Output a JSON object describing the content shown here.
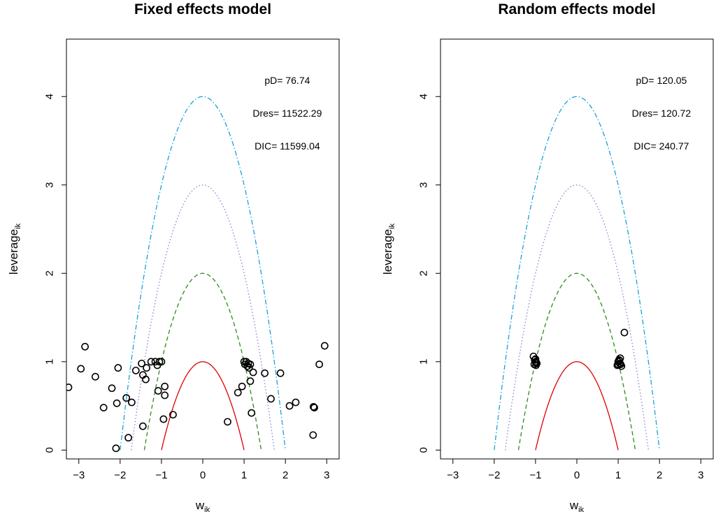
{
  "chart_data": [
    {
      "type": "scatter",
      "title": "Fixed effects model",
      "xlabel": "w",
      "xlabel_sub": "ik",
      "ylabel": "leverage",
      "ylabel_sub": "ik",
      "xlim": [
        -3.3,
        3.3
      ],
      "ylim": [
        -0.1,
        4.65
      ],
      "xticks": [
        -3,
        -2,
        -1,
        0,
        1,
        2,
        3
      ],
      "yticks": [
        0,
        1,
        2,
        3,
        4
      ],
      "annotations": [
        "pD= 76.74",
        "Dres= 11522.29",
        "DIC= 11599.04"
      ],
      "curves": [
        {
          "name": "c=1",
          "c": 1,
          "color": "#dd0000",
          "style": "solid"
        },
        {
          "name": "c=2",
          "c": 2,
          "color": "#2e8b1e",
          "style": "dashed"
        },
        {
          "name": "c=3",
          "c": 3,
          "color": "#8a7fd0",
          "style": "dotted"
        },
        {
          "name": "c=4",
          "c": 4,
          "color": "#1aa0d8",
          "style": "dotdash"
        }
      ],
      "points": [
        [
          -3.25,
          0.71
        ],
        [
          -2.85,
          1.17
        ],
        [
          -2.95,
          0.92
        ],
        [
          -2.6,
          0.83
        ],
        [
          -2.4,
          0.48
        ],
        [
          -2.2,
          0.7
        ],
        [
          -2.05,
          0.93
        ],
        [
          -2.08,
          0.53
        ],
        [
          -1.85,
          0.59
        ],
        [
          -1.72,
          0.54
        ],
        [
          -1.62,
          0.9
        ],
        [
          -1.48,
          0.98
        ],
        [
          -1.45,
          0.85
        ],
        [
          -1.38,
          0.8
        ],
        [
          -1.36,
          0.93
        ],
        [
          -1.25,
          1.0
        ],
        [
          -1.15,
          1.0
        ],
        [
          -1.1,
          0.96
        ],
        [
          -1.05,
          1.0
        ],
        [
          -1.0,
          1.0
        ],
        [
          -1.08,
          0.67
        ],
        [
          -0.92,
          0.72
        ],
        [
          -0.92,
          0.62
        ],
        [
          -0.95,
          0.35
        ],
        [
          -0.72,
          0.4
        ],
        [
          -1.45,
          0.27
        ],
        [
          -1.8,
          0.14
        ],
        [
          -2.1,
          0.02
        ],
        [
          0.6,
          0.32
        ],
        [
          0.85,
          0.65
        ],
        [
          0.95,
          0.72
        ],
        [
          1.0,
          1.0
        ],
        [
          1.02,
          0.97
        ],
        [
          1.05,
          1.0
        ],
        [
          1.08,
          0.95
        ],
        [
          1.1,
          0.98
        ],
        [
          1.12,
          0.93
        ],
        [
          1.15,
          0.97
        ],
        [
          1.15,
          0.78
        ],
        [
          1.18,
          0.42
        ],
        [
          1.22,
          0.88
        ],
        [
          1.5,
          0.87
        ],
        [
          1.65,
          0.58
        ],
        [
          1.88,
          0.87
        ],
        [
          2.1,
          0.5
        ],
        [
          2.25,
          0.54
        ],
        [
          2.68,
          0.49
        ],
        [
          2.7,
          0.48
        ],
        [
          2.67,
          0.17
        ],
        [
          2.82,
          0.97
        ],
        [
          2.95,
          1.18
        ]
      ]
    },
    {
      "type": "scatter",
      "title": "Random effects model",
      "xlabel": "w",
      "xlabel_sub": "ik",
      "ylabel": "leverage",
      "ylabel_sub": "ik",
      "xlim": [
        -3.3,
        3.3
      ],
      "ylim": [
        -0.1,
        4.65
      ],
      "xticks": [
        -3,
        -2,
        -1,
        0,
        1,
        2,
        3
      ],
      "yticks": [
        0,
        1,
        2,
        3,
        4
      ],
      "annotations": [
        "pD= 120.05",
        "Dres= 120.72",
        "DIC= 240.77"
      ],
      "curves": [
        {
          "name": "c=1",
          "c": 1,
          "color": "#dd0000",
          "style": "solid"
        },
        {
          "name": "c=2",
          "c": 2,
          "color": "#2e8b1e",
          "style": "dashed"
        },
        {
          "name": "c=3",
          "c": 3,
          "color": "#8a7fd0",
          "style": "dotted"
        },
        {
          "name": "c=4",
          "c": 4,
          "color": "#1aa0d8",
          "style": "dotdash"
        }
      ],
      "points": [
        [
          -1.05,
          1.06
        ],
        [
          -1.02,
          1.02
        ],
        [
          -1.0,
          1.0
        ],
        [
          -0.98,
          0.99
        ],
        [
          -1.03,
          0.97
        ],
        [
          -0.97,
          0.98
        ],
        [
          -1.0,
          1.03
        ],
        [
          -0.99,
          0.96
        ],
        [
          0.98,
          0.96
        ],
        [
          1.0,
          1.0
        ],
        [
          1.02,
          1.02
        ],
        [
          1.04,
          0.98
        ],
        [
          1.05,
          1.04
        ],
        [
          1.06,
          0.97
        ],
        [
          1.08,
          0.95
        ],
        [
          1.03,
          1.01
        ],
        [
          1.0,
          0.97
        ],
        [
          1.15,
          1.33
        ]
      ]
    }
  ]
}
